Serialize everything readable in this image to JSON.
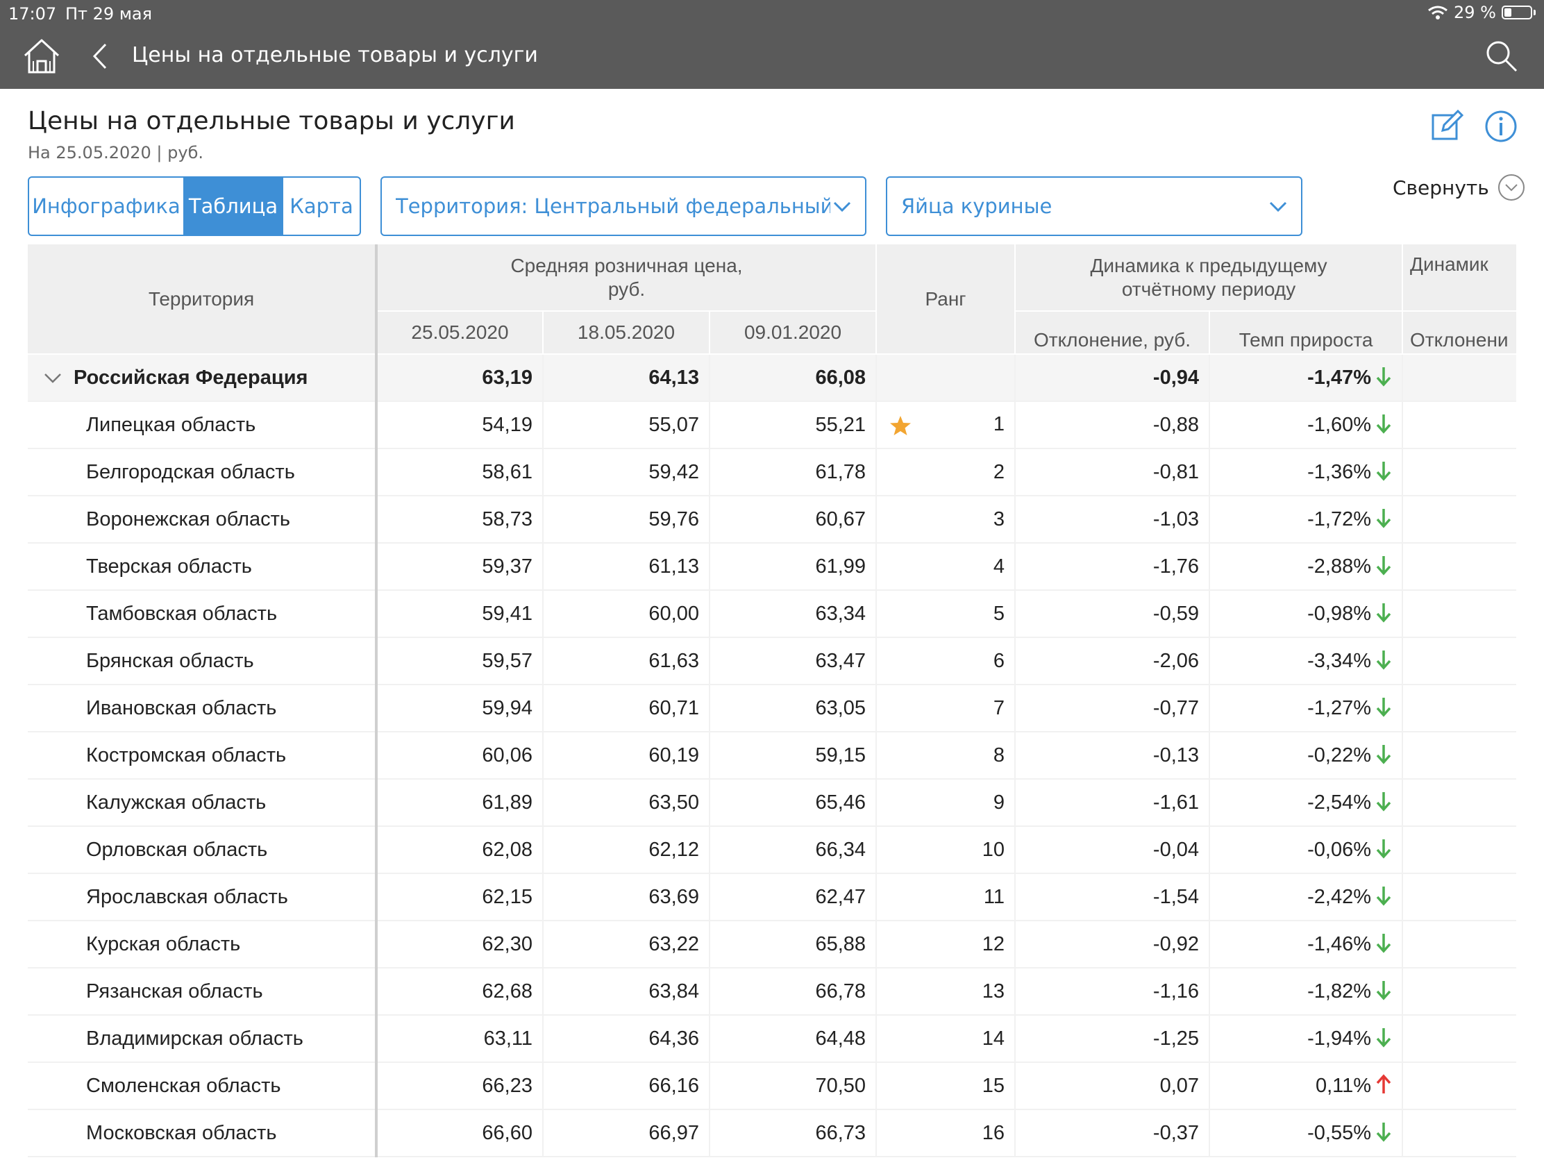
{
  "status_bar": {
    "time": "17:07",
    "date": "Пт 29 мая",
    "battery_percent": "29 %",
    "battery_level": 0.29
  },
  "nav": {
    "title": "Цены на отдельные товары и услуги",
    "home_icon": "home-icon",
    "back_icon": "chevron-left-icon",
    "search_icon": "search-icon"
  },
  "header": {
    "title": "Цены на отдельные товары и услуги",
    "subtitle": "На 25.05.2020 | руб.",
    "collapse_label": "Свернуть"
  },
  "tabs": [
    {
      "label": "Инфографика",
      "active": false
    },
    {
      "label": "Таблица",
      "active": true
    },
    {
      "label": "Карта",
      "active": false
    }
  ],
  "filters": {
    "territory": "Территория: Центральный федеральный ок",
    "product": "Яйца куриные"
  },
  "colors": {
    "accent": "#3e8fd6",
    "topbar": "#5a5a5a",
    "down_arrow": "#4caf50",
    "up_arrow": "#e53935",
    "star": "#f2a531"
  },
  "table": {
    "headers": {
      "territory": "Территория",
      "avg_price": "Средняя розничная цена,\nруб.",
      "rank": "Ранг",
      "dynamics_prev": "Динамика к предыдущему\nотчётному периоду",
      "dynamics_more": "Динамик",
      "date1": "25.05.2020",
      "date2": "18.05.2020",
      "date3": "09.01.2020",
      "deviation": "Отклонение, руб.",
      "growth_rate": "Темп прироста",
      "deviation_more": "Отклонени"
    },
    "total": {
      "name": "Российская Федерация",
      "p1": "63,19",
      "p2": "64,13",
      "p3": "66,08",
      "rank": "",
      "dev": "-0,94",
      "rate": "-1,47%",
      "trend": "down"
    },
    "rows": [
      {
        "name": "Липецкая область",
        "p1": "54,19",
        "p2": "55,07",
        "p3": "55,21",
        "rank": "1",
        "star": true,
        "dev": "-0,88",
        "rate": "-1,60%",
        "trend": "down"
      },
      {
        "name": "Белгородская область",
        "p1": "58,61",
        "p2": "59,42",
        "p3": "61,78",
        "rank": "2",
        "dev": "-0,81",
        "rate": "-1,36%",
        "trend": "down"
      },
      {
        "name": "Воронежская область",
        "p1": "58,73",
        "p2": "59,76",
        "p3": "60,67",
        "rank": "3",
        "dev": "-1,03",
        "rate": "-1,72%",
        "trend": "down"
      },
      {
        "name": "Тверская область",
        "p1": "59,37",
        "p2": "61,13",
        "p3": "61,99",
        "rank": "4",
        "dev": "-1,76",
        "rate": "-2,88%",
        "trend": "down"
      },
      {
        "name": "Тамбовская область",
        "p1": "59,41",
        "p2": "60,00",
        "p3": "63,34",
        "rank": "5",
        "dev": "-0,59",
        "rate": "-0,98%",
        "trend": "down"
      },
      {
        "name": "Брянская область",
        "p1": "59,57",
        "p2": "61,63",
        "p3": "63,47",
        "rank": "6",
        "dev": "-2,06",
        "rate": "-3,34%",
        "trend": "down"
      },
      {
        "name": "Ивановская область",
        "p1": "59,94",
        "p2": "60,71",
        "p3": "63,05",
        "rank": "7",
        "dev": "-0,77",
        "rate": "-1,27%",
        "trend": "down"
      },
      {
        "name": "Костромская область",
        "p1": "60,06",
        "p2": "60,19",
        "p3": "59,15",
        "rank": "8",
        "dev": "-0,13",
        "rate": "-0,22%",
        "trend": "down"
      },
      {
        "name": "Калужская область",
        "p1": "61,89",
        "p2": "63,50",
        "p3": "65,46",
        "rank": "9",
        "dev": "-1,61",
        "rate": "-2,54%",
        "trend": "down"
      },
      {
        "name": "Орловская область",
        "p1": "62,08",
        "p2": "62,12",
        "p3": "66,34",
        "rank": "10",
        "dev": "-0,04",
        "rate": "-0,06%",
        "trend": "down"
      },
      {
        "name": "Ярославская область",
        "p1": "62,15",
        "p2": "63,69",
        "p3": "62,47",
        "rank": "11",
        "dev": "-1,54",
        "rate": "-2,42%",
        "trend": "down"
      },
      {
        "name": "Курская область",
        "p1": "62,30",
        "p2": "63,22",
        "p3": "65,88",
        "rank": "12",
        "dev": "-0,92",
        "rate": "-1,46%",
        "trend": "down"
      },
      {
        "name": "Рязанская область",
        "p1": "62,68",
        "p2": "63,84",
        "p3": "66,78",
        "rank": "13",
        "dev": "-1,16",
        "rate": "-1,82%",
        "trend": "down"
      },
      {
        "name": "Владимирская область",
        "p1": "63,11",
        "p2": "64,36",
        "p3": "64,48",
        "rank": "14",
        "dev": "-1,25",
        "rate": "-1,94%",
        "trend": "down"
      },
      {
        "name": "Смоленская область",
        "p1": "66,23",
        "p2": "66,16",
        "p3": "70,50",
        "rank": "15",
        "dev": "0,07",
        "rate": "0,11%",
        "trend": "up"
      },
      {
        "name": "Московская область",
        "p1": "66,60",
        "p2": "66,97",
        "p3": "66,73",
        "rank": "16",
        "dev": "-0,37",
        "rate": "-0,55%",
        "trend": "down"
      }
    ]
  }
}
